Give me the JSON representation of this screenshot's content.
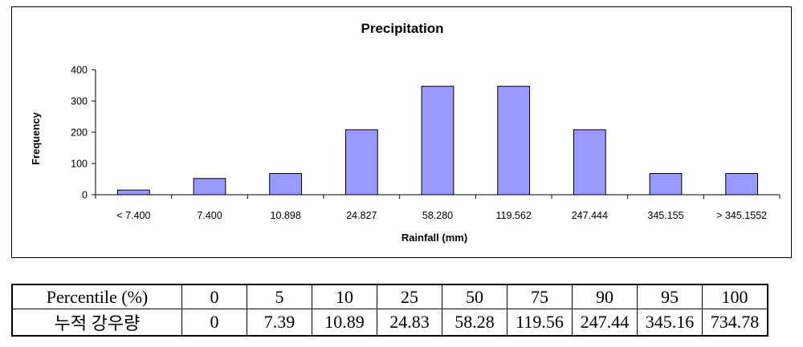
{
  "chart_data": {
    "type": "bar",
    "title": "Precipitation",
    "xlabel": "Rainfall (mm)",
    "ylabel": "Frequency",
    "categories": [
      "< 7.400",
      "7.400",
      "10.898",
      "24.827",
      "58.280",
      "119.562",
      "247.444",
      "345.155",
      "> 345.1552"
    ],
    "values": [
      15,
      52,
      68,
      208,
      347,
      347,
      208,
      68,
      68
    ],
    "ylim": [
      0,
      400
    ],
    "yticks": [
      0,
      100,
      200,
      300,
      400
    ],
    "grid": false,
    "legend": "none",
    "bar_color": "#9999ff"
  },
  "percentile_table": {
    "row_header_1": "Percentile (%)",
    "row_header_2": "누적 강우량",
    "percentiles": [
      "0",
      "5",
      "10",
      "25",
      "50",
      "75",
      "90",
      "95",
      "100"
    ],
    "rainfall": [
      "0",
      "7.39",
      "10.89",
      "24.83",
      "58.28",
      "119.56",
      "247.44",
      "345.16",
      "734.78"
    ]
  }
}
